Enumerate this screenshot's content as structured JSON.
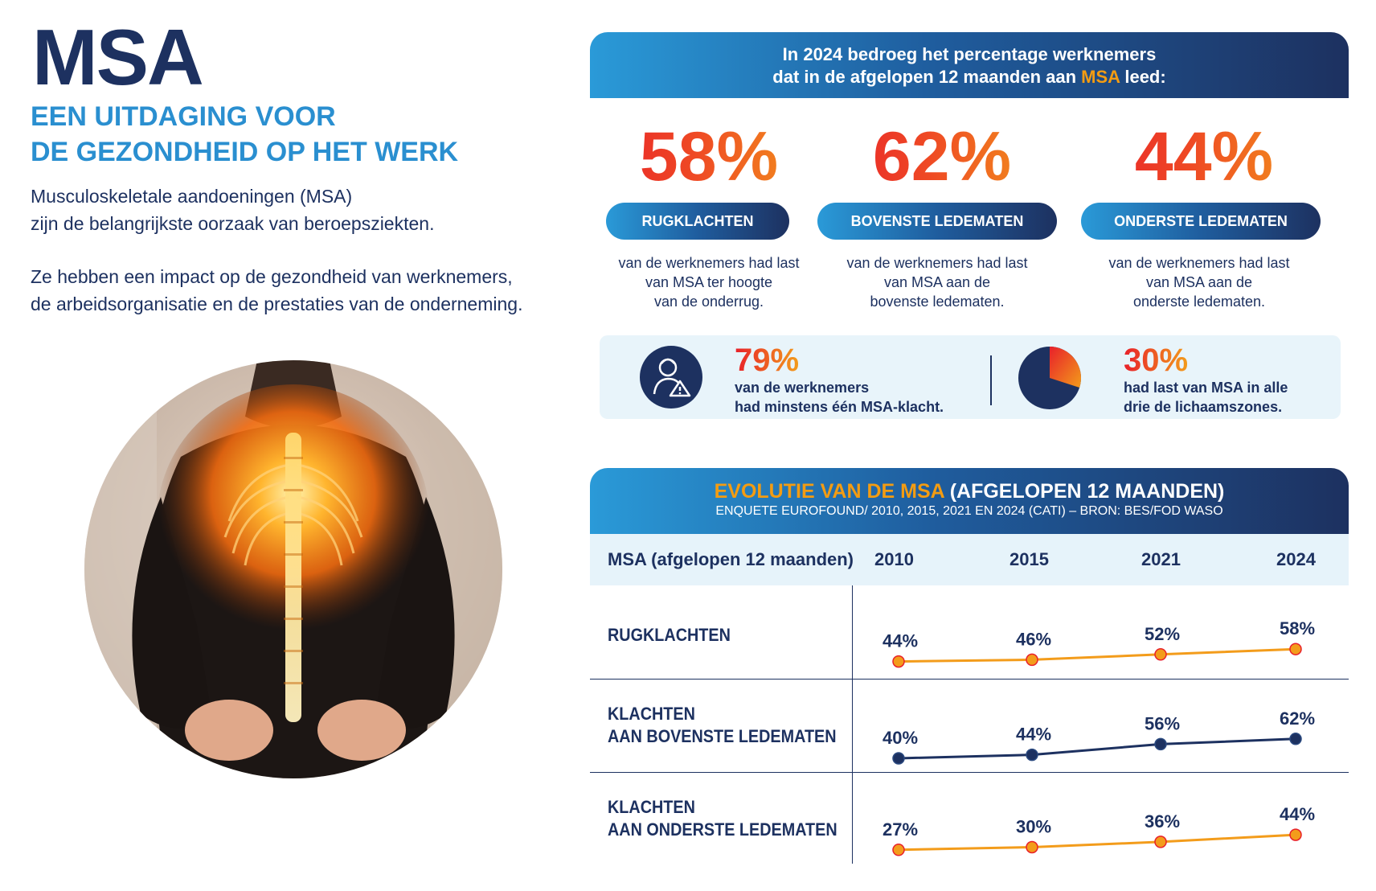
{
  "header": {
    "title": "MSA",
    "subtitle_line1": "EEN UITDAGING VOOR",
    "subtitle_line2": "DE GEZONDHEID OP HET WERK",
    "intro_line1": "Musculoskeletale aandoeningen (MSA)",
    "intro_line2": "zijn de belangrijkste oorzaak van beroepsziekten.",
    "intro_line3": "Ze hebben een impact op de gezondheid van werknemers,",
    "intro_line4": "de arbeidsorganisatie en de prestaties van de onderneming."
  },
  "stats": {
    "banner_line1": "In 2024 bedroeg het percentage werknemers",
    "banner_line2_pre": "dat in de afgelopen 12 maanden aan ",
    "banner_line2_highlight": "MSA",
    "banner_line2_post": " leed:",
    "items": [
      {
        "percent": "58%",
        "label": "RUGKLACHTEN",
        "desc1": "van de werknemers had last",
        "desc2": "van MSA ter hoogte",
        "desc3": "van de onderrug."
      },
      {
        "percent": "62%",
        "label": "BOVENSTE LEDEMATEN",
        "desc1": "van de werknemers had last",
        "desc2": "van MSA aan de",
        "desc3": "bovenste ledematen."
      },
      {
        "percent": "44%",
        "label": "ONDERSTE LEDEMATEN",
        "desc1": "van de werknemers had last",
        "desc2": "van MSA aan de",
        "desc3": "onderste ledematen."
      }
    ],
    "summary": [
      {
        "percent": "79%",
        "line1": "van de werknemers",
        "line2": "had minstens één MSA-klacht.",
        "icon": "worker-warning-icon"
      },
      {
        "percent": "30%",
        "line1": "had last van MSA in alle",
        "line2": "drie de lichaamszones.",
        "icon": "pie-icon",
        "fraction": 0.3
      }
    ]
  },
  "evolution": {
    "title_highlight": "EVOLUTIE VAN DE MSA",
    "title_rest": " (AFGELOPEN 12 MAANDEN)",
    "source": "ENQUETE EUROFOUND/ 2010, 2015, 2021 EN 2024 (CATI) – BRON: BES/FOD WASO",
    "header_label": "MSA (afgelopen 12 maanden)",
    "rows": [
      {
        "line1": "RUGKLACHTEN",
        "line2": ""
      },
      {
        "line1": "KLACHTEN",
        "line2": "AAN BOVENSTE LEDEMATEN"
      },
      {
        "line1": "KLACHTEN",
        "line2": "AAN ONDERSTE LEDEMATEN"
      }
    ]
  },
  "chart_data": {
    "type": "line",
    "x": [
      "2010",
      "2015",
      "2021",
      "2024"
    ],
    "series": [
      {
        "name": "RUGKLACHTEN",
        "values": [
          44,
          46,
          52,
          58
        ],
        "labels": [
          "44%",
          "46%",
          "52%",
          "58%"
        ],
        "color": "#f39c1b"
      },
      {
        "name": "KLACHTEN AAN BOVENSTE LEDEMATEN",
        "values": [
          40,
          44,
          56,
          62
        ],
        "labels": [
          "40%",
          "44%",
          "56%",
          "62%"
        ],
        "color": "#1d3160"
      },
      {
        "name": "KLACHTEN AAN ONDERSTE LEDEMATEN",
        "values": [
          27,
          30,
          36,
          44
        ],
        "labels": [
          "27%",
          "30%",
          "36%",
          "44%"
        ],
        "color": "#f39c1b"
      }
    ]
  },
  "colors": {
    "navy": "#1d3160",
    "blue": "#2a8fd0",
    "red": "#e8202a",
    "orange": "#f39c1b",
    "light_bg": "#e8f4fa"
  }
}
